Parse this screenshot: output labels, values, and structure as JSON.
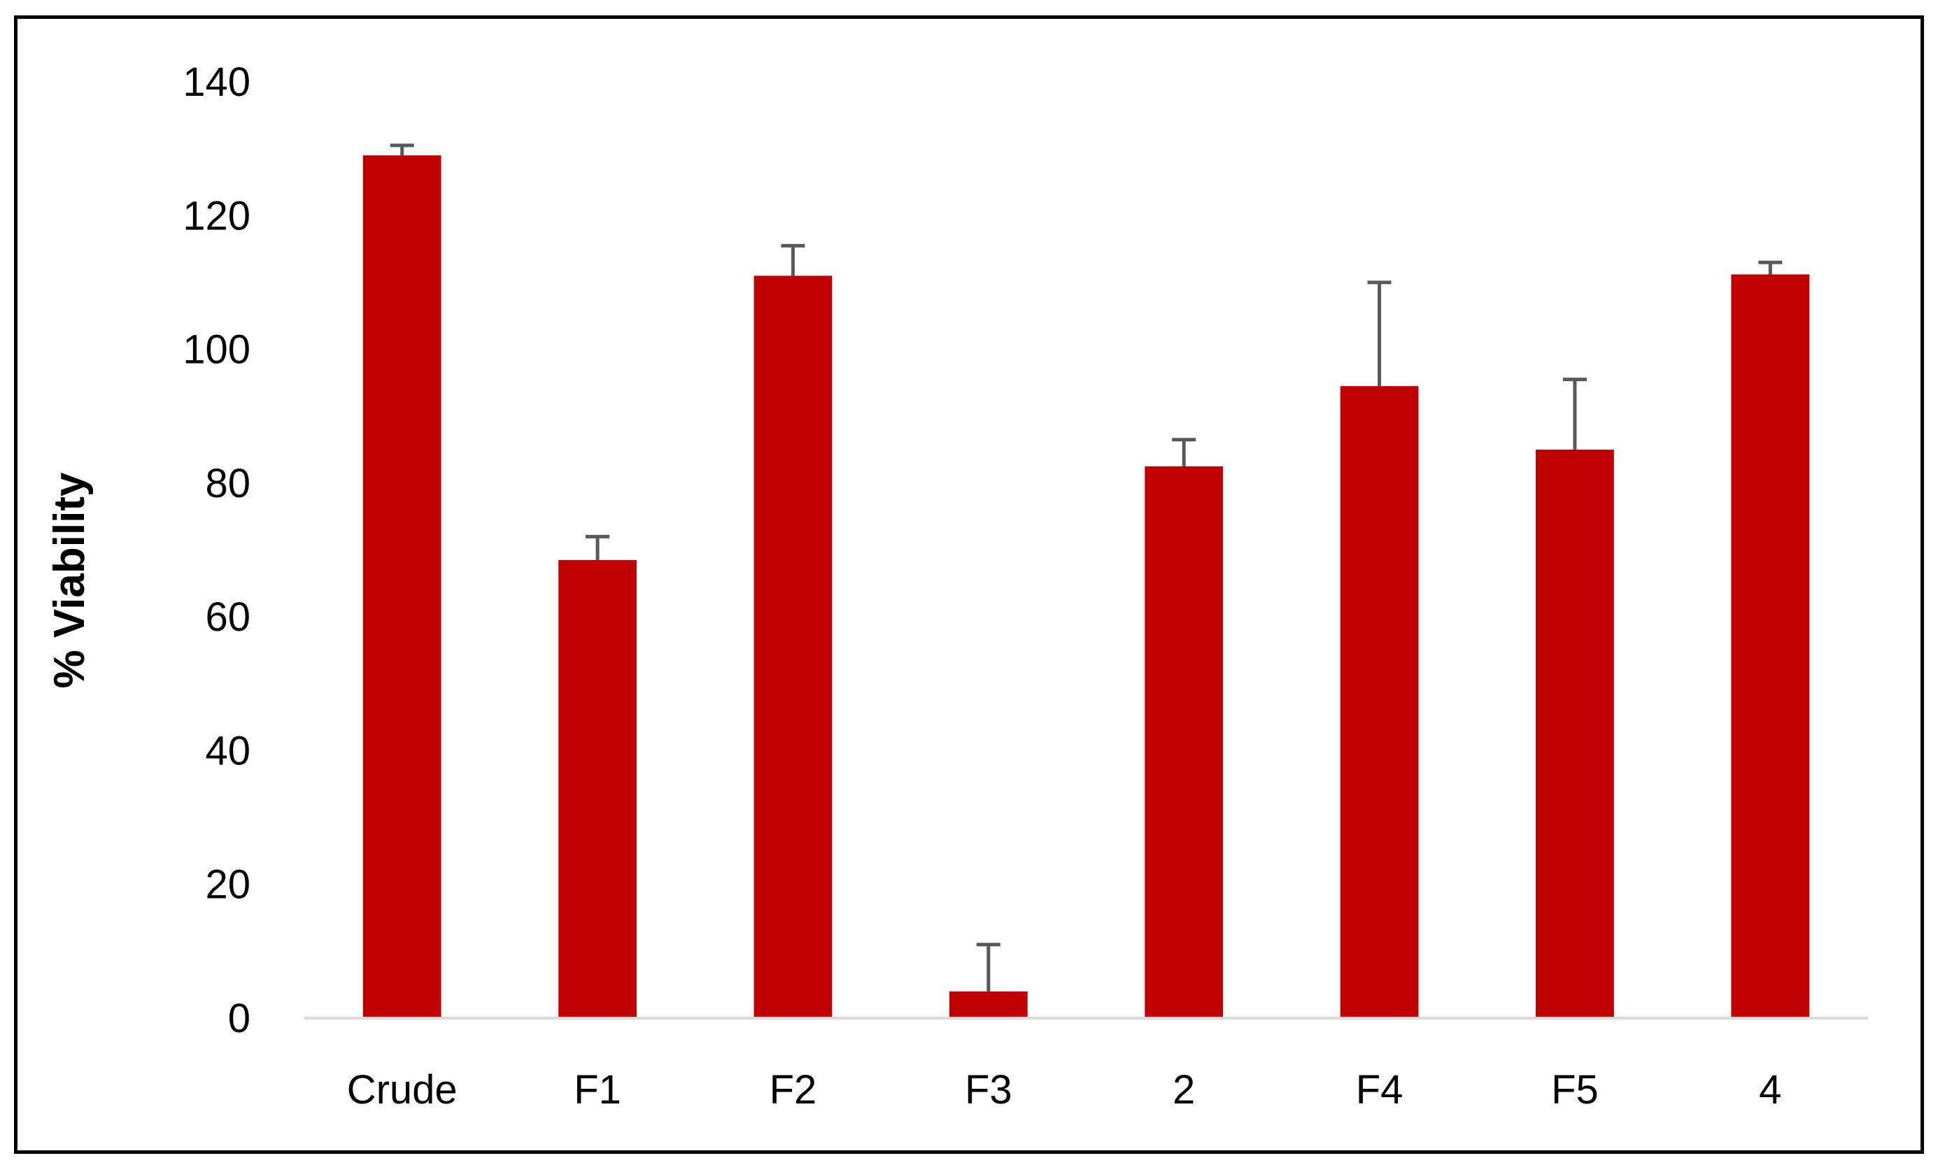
{
  "chart_data": {
    "type": "bar",
    "title": "",
    "xlabel": "",
    "ylabel": "% Viability",
    "categories": [
      "Crude",
      "F1",
      "F2",
      "F3",
      "2",
      "F4",
      "F5",
      "4"
    ],
    "series": [
      {
        "values": [
          129,
          68.5,
          111,
          4,
          82.5,
          94.5,
          85,
          111.2
        ],
        "error": [
          1.5,
          3.5,
          4.5,
          7,
          4,
          15.5,
          10.5,
          1.8
        ]
      }
    ],
    "ylim": [
      0,
      140
    ],
    "yticks": [
      0,
      20,
      40,
      60,
      80,
      100,
      120,
      140
    ],
    "grid": false,
    "legend": "none",
    "colors": {
      "bar": "#c00000",
      "error_bar": "#595959",
      "axis_line": "#d9d9d9",
      "frame": "#000000"
    }
  }
}
